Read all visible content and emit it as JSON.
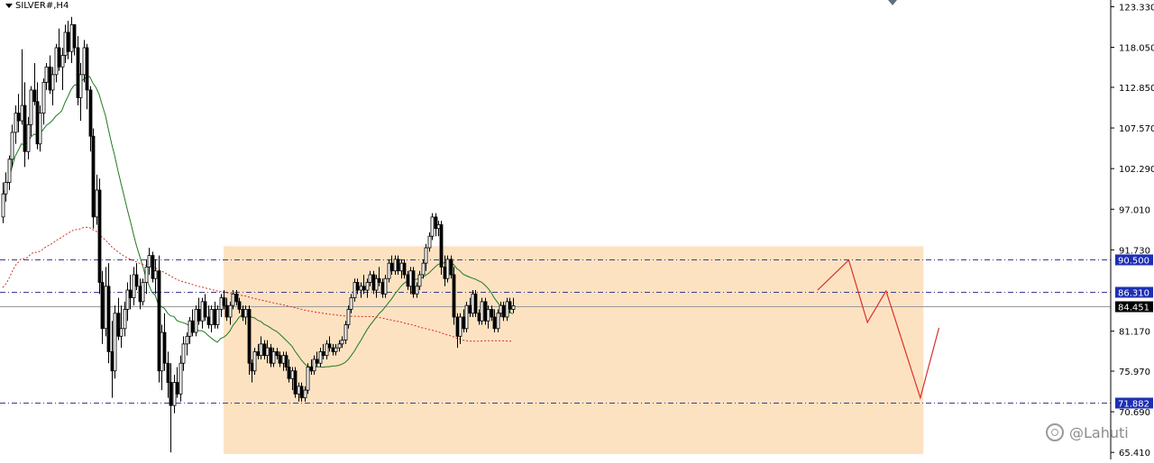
{
  "header": {
    "symbol": "SILVER#,H4"
  },
  "watermark": {
    "text": "@Lahuti"
  },
  "colors": {
    "up_candle": "#000000",
    "down_candle": "#000000",
    "ma_fast": "#1f7a1f",
    "ma_slow": "#d0302a",
    "zone_fill": "#fde0be",
    "level_line": "#3b3b8f",
    "level_label_bg": "#1e2fb4",
    "current_label_bg": "#000000",
    "projection": "#d9302a"
  },
  "chart_data": {
    "type": "candlestick",
    "title": "",
    "xlabel": "",
    "ylabel": "",
    "ylim": [
      64.5,
      124.2
    ],
    "y_ticks": [
      "123.330",
      "118.050",
      "112.850",
      "107.570",
      "102.290",
      "97.010",
      "91.730",
      "81.170",
      "75.970",
      "70.690",
      "65.410"
    ],
    "horizontal_levels": [
      {
        "value": 90.5,
        "label": "90.500",
        "style": "dash-dot"
      },
      {
        "value": 86.31,
        "label": "86.310",
        "style": "dash-dot"
      },
      {
        "value": 71.882,
        "label": "71.882",
        "style": "dash-dot"
      }
    ],
    "current_price": {
      "value": 84.451,
      "label": "84.451"
    },
    "range_box": {
      "bar_start": 71,
      "bar_end": 296,
      "price_top": 92.2,
      "price_bottom": 65.2
    },
    "projection_path": [
      {
        "bar": 262,
        "price": 86.5
      },
      {
        "bar": 272,
        "price": 90.4
      },
      {
        "bar": 278,
        "price": 82.3
      },
      {
        "bar": 284,
        "price": 86.4
      },
      {
        "bar": 295,
        "price": 72.5
      },
      {
        "bar": 301,
        "price": 81.6
      }
    ],
    "candles": [
      [
        96.0,
        100.5,
        95.2,
        99.0
      ],
      [
        99.0,
        101.8,
        98.0,
        100.5
      ],
      [
        100.5,
        104.0,
        99.5,
        103.5
      ],
      [
        103.5,
        108.0,
        102.5,
        107.0
      ],
      [
        107.0,
        110.5,
        105.5,
        109.5
      ],
      [
        109.5,
        112.0,
        107.0,
        108.5
      ],
      [
        108.5,
        117.8,
        108.0,
        110.5
      ],
      [
        110.5,
        113.5,
        102.5,
        104.5
      ],
      [
        104.5,
        109.0,
        103.5,
        108.0
      ],
      [
        108.0,
        113.0,
        106.5,
        112.5
      ],
      [
        112.5,
        116.0,
        110.5,
        111.0
      ],
      [
        111.0,
        113.5,
        104.8,
        105.5
      ],
      [
        105.5,
        110.5,
        104.5,
        109.5
      ],
      [
        109.5,
        114.0,
        108.0,
        113.5
      ],
      [
        113.5,
        116.0,
        112.5,
        115.5
      ],
      [
        115.5,
        117.0,
        112.0,
        112.5
      ],
      [
        112.5,
        115.5,
        110.5,
        114.5
      ],
      [
        114.5,
        118.5,
        113.5,
        118.0
      ],
      [
        118.0,
        120.5,
        115.0,
        115.5
      ],
      [
        115.5,
        118.0,
        112.5,
        117.0
      ],
      [
        117.0,
        121.0,
        116.0,
        120.0
      ],
      [
        120.0,
        121.5,
        116.5,
        117.5
      ],
      [
        117.5,
        122.0,
        116.0,
        121.0
      ],
      [
        121.0,
        120.5,
        117.0,
        118.0
      ],
      [
        118.0,
        119.5,
        110.5,
        111.5
      ],
      [
        111.5,
        116.0,
        108.5,
        114.5
      ],
      [
        114.5,
        119.0,
        113.5,
        118.0
      ],
      [
        118.0,
        118.5,
        110.0,
        112.5
      ],
      [
        112.5,
        113.0,
        104.5,
        106.5
      ],
      [
        106.5,
        107.5,
        94.5,
        96.0
      ],
      [
        96.0,
        101.5,
        95.0,
        99.5
      ],
      [
        99.5,
        101.0,
        86.0,
        87.5
      ],
      [
        87.5,
        89.0,
        79.5,
        81.5
      ],
      [
        81.5,
        89.5,
        80.5,
        87.0
      ],
      [
        87.0,
        90.0,
        77.0,
        78.5
      ],
      [
        78.5,
        82.5,
        72.5,
        76.0
      ],
      [
        76.0,
        84.5,
        75.0,
        83.5
      ],
      [
        83.5,
        85.5,
        80.0,
        80.5
      ],
      [
        80.5,
        84.5,
        79.0,
        81.5
      ],
      [
        81.5,
        85.0,
        80.5,
        84.0
      ],
      [
        84.0,
        87.5,
        82.5,
        86.5
      ],
      [
        86.5,
        88.5,
        84.0,
        85.5
      ],
      [
        85.5,
        89.5,
        84.5,
        88.5
      ],
      [
        88.5,
        90.0,
        86.5,
        87.0
      ],
      [
        87.0,
        88.0,
        84.0,
        85.0
      ],
      [
        85.0,
        88.0,
        84.5,
        87.5
      ],
      [
        87.5,
        90.5,
        86.0,
        89.5
      ],
      [
        89.5,
        92.0,
        88.5,
        91.0
      ],
      [
        91.0,
        91.5,
        87.5,
        88.0
      ],
      [
        88.0,
        90.5,
        86.0,
        89.0
      ],
      [
        89.0,
        91.0,
        74.5,
        76.0
      ],
      [
        76.0,
        82.0,
        73.5,
        81.0
      ],
      [
        81.0,
        83.5,
        76.0,
        77.0
      ],
      [
        77.0,
        78.5,
        72.5,
        74.5
      ],
      [
        74.5,
        77.0,
        65.4,
        71.5
      ],
      [
        71.5,
        75.5,
        70.5,
        74.5
      ],
      [
        74.5,
        76.5,
        72.5,
        73.0
      ],
      [
        73.0,
        78.0,
        72.0,
        77.0
      ],
      [
        77.0,
        80.5,
        76.0,
        79.5
      ],
      [
        79.5,
        81.0,
        78.0,
        80.5
      ],
      [
        80.5,
        83.0,
        79.5,
        82.5
      ],
      [
        82.5,
        84.0,
        80.5,
        81.0
      ],
      [
        81.0,
        84.5,
        80.5,
        84.0
      ],
      [
        84.0,
        85.5,
        82.0,
        82.5
      ],
      [
        82.5,
        85.5,
        81.5,
        85.0
      ],
      [
        85.0,
        86.0,
        82.5,
        83.0
      ],
      [
        83.0,
        84.5,
        81.5,
        82.0
      ],
      [
        82.0,
        84.5,
        81.0,
        84.0
      ],
      [
        84.0,
        85.0,
        81.5,
        82.0
      ],
      [
        82.0,
        84.5,
        81.5,
        84.0
      ],
      [
        84.0,
        86.0,
        83.0,
        85.5
      ],
      [
        85.5,
        86.5,
        84.0,
        84.5
      ],
      [
        84.5,
        85.5,
        82.5,
        83.0
      ],
      [
        83.0,
        85.0,
        82.0,
        84.5
      ],
      [
        84.5,
        86.5,
        84.0,
        86.0
      ],
      [
        86.0,
        86.5,
        84.5,
        85.0
      ],
      [
        85.0,
        85.5,
        83.5,
        84.0
      ],
      [
        84.0,
        84.5,
        82.5,
        83.0
      ],
      [
        83.0,
        84.5,
        82.0,
        84.0
      ],
      [
        84.0,
        84.5,
        75.5,
        77.0
      ],
      [
        77.0,
        77.5,
        74.5,
        76.0
      ],
      [
        76.0,
        79.0,
        75.5,
        78.5
      ],
      [
        78.5,
        79.5,
        77.5,
        78.0
      ],
      [
        78.0,
        80.5,
        77.5,
        79.5
      ],
      [
        79.5,
        80.0,
        77.5,
        78.0
      ],
      [
        78.0,
        80.0,
        77.0,
        79.0
      ],
      [
        79.0,
        79.5,
        76.5,
        77.0
      ],
      [
        77.0,
        79.0,
        76.5,
        78.5
      ],
      [
        78.5,
        79.0,
        77.5,
        78.0
      ],
      [
        78.0,
        78.5,
        76.5,
        77.0
      ],
      [
        77.0,
        78.5,
        76.0,
        78.0
      ],
      [
        78.0,
        78.5,
        76.0,
        76.5
      ],
      [
        76.5,
        77.5,
        74.5,
        75.0
      ],
      [
        75.0,
        76.5,
        73.5,
        76.0
      ],
      [
        76.0,
        76.5,
        72.5,
        73.0
      ],
      [
        73.0,
        74.5,
        72.0,
        74.0
      ],
      [
        74.0,
        74.5,
        72.0,
        72.5
      ],
      [
        72.5,
        74.0,
        72.0,
        73.5
      ],
      [
        73.5,
        77.0,
        73.0,
        76.5
      ],
      [
        76.5,
        77.5,
        75.5,
        76.0
      ],
      [
        76.0,
        78.0,
        75.5,
        77.5
      ],
      [
        77.5,
        78.5,
        76.5,
        77.0
      ],
      [
        77.0,
        79.0,
        76.5,
        78.5
      ],
      [
        78.5,
        79.5,
        77.5,
        78.0
      ],
      [
        78.0,
        80.0,
        77.5,
        79.5
      ],
      [
        79.5,
        80.5,
        78.5,
        79.0
      ],
      [
        79.0,
        79.5,
        78.0,
        78.5
      ],
      [
        78.5,
        79.5,
        78.0,
        79.0
      ],
      [
        79.0,
        80.0,
        78.5,
        79.5
      ],
      [
        79.5,
        80.5,
        79.0,
        80.0
      ],
      [
        80.0,
        82.5,
        79.5,
        82.0
      ],
      [
        82.0,
        84.5,
        81.5,
        84.0
      ],
      [
        84.0,
        86.0,
        83.5,
        85.5
      ],
      [
        85.5,
        88.0,
        85.0,
        87.5
      ],
      [
        87.5,
        88.0,
        86.0,
        86.5
      ],
      [
        86.5,
        87.5,
        85.5,
        87.0
      ],
      [
        87.0,
        88.5,
        86.0,
        86.5
      ],
      [
        86.5,
        88.0,
        85.5,
        87.5
      ],
      [
        87.5,
        89.0,
        87.0,
        88.5
      ],
      [
        88.5,
        89.0,
        86.0,
        86.5
      ],
      [
        86.5,
        88.5,
        85.5,
        88.0
      ],
      [
        88.0,
        89.5,
        87.0,
        87.5
      ],
      [
        87.5,
        88.0,
        85.5,
        86.0
      ],
      [
        86.0,
        88.5,
        85.5,
        88.0
      ],
      [
        88.0,
        90.5,
        87.5,
        90.0
      ],
      [
        90.0,
        91.0,
        88.5,
        89.0
      ],
      [
        89.0,
        91.0,
        88.5,
        90.5
      ],
      [
        90.5,
        91.0,
        88.5,
        89.0
      ],
      [
        89.0,
        90.5,
        88.0,
        90.0
      ],
      [
        90.0,
        90.5,
        88.0,
        88.5
      ],
      [
        88.5,
        89.0,
        86.5,
        87.0
      ],
      [
        87.0,
        89.5,
        86.0,
        89.0
      ],
      [
        89.0,
        89.5,
        85.5,
        86.0
      ],
      [
        86.0,
        87.5,
        85.5,
        87.0
      ],
      [
        87.0,
        89.0,
        86.5,
        88.5
      ],
      [
        88.5,
        90.5,
        88.0,
        90.0
      ],
      [
        90.0,
        92.5,
        89.0,
        92.0
      ],
      [
        92.0,
        94.0,
        91.5,
        93.5
      ],
      [
        93.5,
        96.5,
        93.0,
        96.0
      ],
      [
        96.0,
        96.5,
        93.5,
        94.5
      ],
      [
        94.5,
        95.5,
        93.5,
        95.0
      ],
      [
        95.0,
        95.5,
        88.5,
        89.5
      ],
      [
        89.5,
        91.0,
        87.0,
        88.0
      ],
      [
        88.0,
        91.0,
        87.5,
        90.5
      ],
      [
        90.5,
        91.0,
        88.0,
        88.5
      ],
      [
        88.5,
        89.5,
        82.0,
        83.0
      ],
      [
        83.0,
        83.5,
        79.0,
        80.5
      ],
      [
        80.5,
        83.5,
        79.5,
        83.0
      ],
      [
        83.0,
        84.0,
        81.0,
        81.5
      ],
      [
        81.5,
        85.0,
        81.0,
        84.5
      ],
      [
        84.5,
        85.5,
        83.0,
        83.5
      ],
      [
        83.5,
        86.5,
        83.0,
        86.0
      ],
      [
        86.0,
        86.5,
        83.0,
        83.5
      ],
      [
        83.5,
        84.0,
        82.0,
        82.5
      ],
      [
        82.5,
        85.5,
        82.0,
        85.0
      ],
      [
        85.0,
        85.5,
        82.0,
        82.5
      ],
      [
        82.5,
        84.5,
        81.5,
        84.0
      ],
      [
        84.0,
        84.5,
        82.5,
        83.0
      ],
      [
        83.0,
        84.0,
        81.0,
        81.5
      ],
      [
        81.5,
        84.0,
        81.0,
        83.5
      ],
      [
        83.5,
        85.0,
        83.0,
        84.5
      ],
      [
        84.5,
        85.0,
        82.5,
        83.0
      ],
      [
        83.0,
        85.5,
        82.5,
        85.0
      ],
      [
        85.0,
        85.5,
        83.5,
        84.0
      ],
      [
        84.0,
        85.5,
        83.5,
        84.45
      ]
    ]
  }
}
